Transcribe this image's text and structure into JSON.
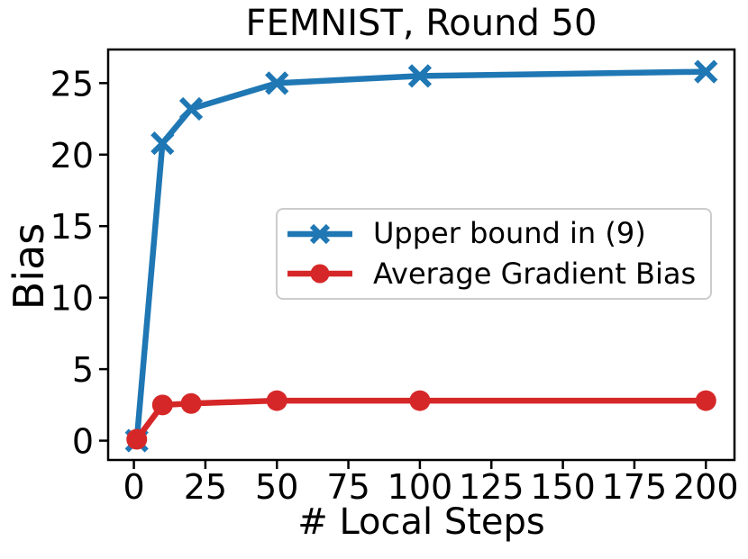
{
  "figure": {
    "title": "FEMNIST, Round 50",
    "background": "#ffffff"
  },
  "colors": {
    "axis": "#000000",
    "text": "#000000",
    "legend_border": "#cccccc",
    "upper_bound_blue": "#1f77b4",
    "avg_bias_red": "#d62728"
  },
  "chart_data": {
    "type": "line",
    "title": "FEMNIST, Round 50",
    "xlabel": "# Local Steps",
    "ylabel": "Bias",
    "x": [
      1,
      10,
      20,
      50,
      100,
      200
    ],
    "series": [
      {
        "name": "Upper bound in (9)",
        "color": "#1f77b4",
        "marker": "x",
        "values": [
          0.0,
          20.8,
          23.2,
          25.0,
          25.5,
          25.8
        ]
      },
      {
        "name": "Average Gradient Bias",
        "color": "#d62728",
        "marker": "circle",
        "values": [
          0.1,
          2.5,
          2.6,
          2.8,
          2.8,
          2.8
        ]
      }
    ],
    "xticks": [
      0,
      25,
      50,
      75,
      100,
      125,
      150,
      175,
      200
    ],
    "yticks": [
      0,
      5,
      10,
      15,
      20,
      25
    ],
    "xlim": [
      -9,
      210
    ],
    "ylim": [
      -1.35,
      27.35
    ],
    "grid": false,
    "legend_position": "center right"
  }
}
